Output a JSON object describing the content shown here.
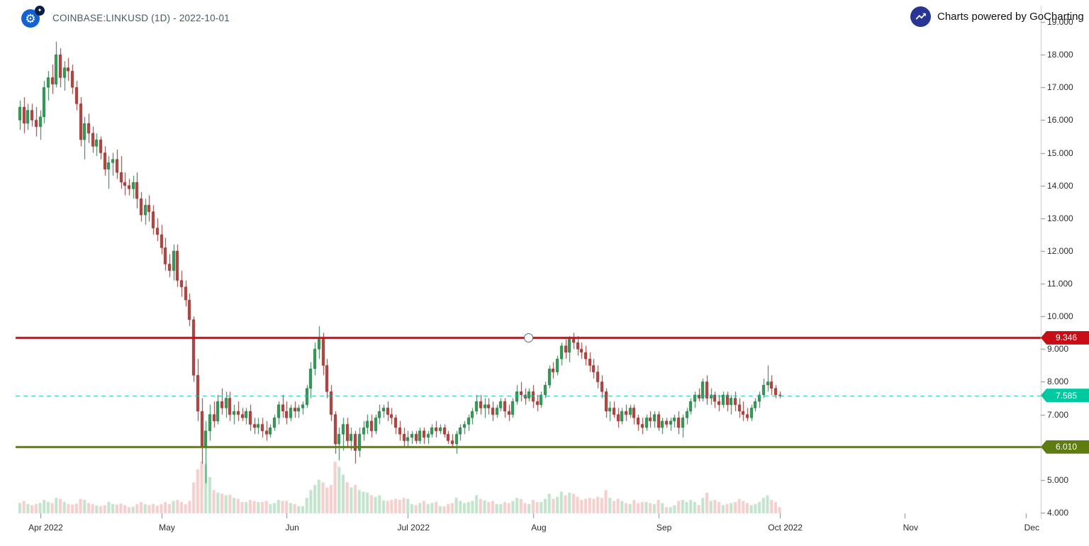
{
  "header": {
    "title": "COINBASE:LINKUSD (1D) - 2022-10-01",
    "powered_by": "Charts powered by GoCharting"
  },
  "colors": {
    "background": "#ffffff",
    "up_body": "#35a05a",
    "up_border": "#1d7a3f",
    "down_body": "#bf4540",
    "down_border": "#8c2f2b",
    "volume_up": "rgba(76,175,112,0.35)",
    "volume_down": "rgba(214,80,74,0.28)",
    "axis_line": "#c9c9c9",
    "tick": "#888888",
    "axis_text": "#2b2b2b"
  },
  "chart_data": {
    "type": "candlestick",
    "symbol": "COINBASE:LINKUSD",
    "interval": "1D",
    "as_of": "2022-10-01",
    "start_date": "2022-03-27",
    "y_axis": {
      "min": 4,
      "max": 19,
      "step": 1,
      "tick_labels": [
        "19.000",
        "18.000",
        "17.000",
        "16.000",
        "15.000",
        "14.000",
        "13.000",
        "12.000",
        "11.000",
        "10.000",
        "9.000",
        "8.000",
        "7.000",
        "6.000",
        "5.000",
        "4.000"
      ]
    },
    "x_axis_labels": [
      {
        "label": "Apr 2022",
        "day_index": 5
      },
      {
        "label": "May",
        "day_index": 35
      },
      {
        "label": "Jun",
        "day_index": 66
      },
      {
        "label": "Jul 2022",
        "day_index": 96
      },
      {
        "label": "Aug",
        "day_index": 127
      },
      {
        "label": "Sep",
        "day_index": 158
      },
      {
        "label": "Oct 2022",
        "day_index": 188
      },
      {
        "label": "Nov",
        "day_index": 219
      },
      {
        "label": "Dec",
        "day_index": 249
      }
    ],
    "horizontal_lines": [
      {
        "name": "resistance",
        "price": 9.346,
        "label": "9.346",
        "color": "#c90d17",
        "style": "solid",
        "width": 3,
        "handle": true
      },
      {
        "name": "last-price",
        "price": 7.585,
        "label": "7.585",
        "color": "#00c9a2",
        "style": "dashed",
        "width": 1,
        "handle": false
      },
      {
        "name": "support",
        "price": 6.01,
        "label": "6.010",
        "color": "#5f7c10",
        "style": "solid",
        "width": 3,
        "handle": false
      }
    ],
    "candles_format": [
      "open",
      "high",
      "low",
      "close",
      "relative_volume"
    ],
    "candles": [
      [
        16.0,
        16.6,
        15.7,
        16.4,
        20
      ],
      [
        16.4,
        16.7,
        15.6,
        15.9,
        24
      ],
      [
        15.9,
        16.5,
        15.7,
        16.3,
        18
      ],
      [
        16.3,
        16.5,
        15.8,
        16.0,
        16
      ],
      [
        16.0,
        16.4,
        15.5,
        15.8,
        18
      ],
      [
        15.8,
        16.3,
        15.4,
        16.1,
        20
      ],
      [
        16.1,
        17.2,
        15.9,
        17.0,
        26
      ],
      [
        17.0,
        17.5,
        16.6,
        17.3,
        22
      ],
      [
        17.3,
        17.7,
        16.8,
        17.1,
        20
      ],
      [
        17.1,
        18.4,
        17.0,
        18.0,
        30
      ],
      [
        18.0,
        18.2,
        17.0,
        17.3,
        28
      ],
      [
        17.3,
        17.8,
        16.9,
        17.6,
        22
      ],
      [
        17.6,
        17.9,
        17.2,
        17.5,
        18
      ],
      [
        17.5,
        17.7,
        16.8,
        17.0,
        17
      ],
      [
        17.0,
        17.2,
        16.3,
        16.5,
        19
      ],
      [
        16.5,
        16.7,
        15.2,
        15.4,
        28
      ],
      [
        15.4,
        16.1,
        14.8,
        15.9,
        26
      ],
      [
        15.9,
        16.2,
        15.3,
        15.6,
        20
      ],
      [
        15.6,
        15.8,
        15.0,
        15.2,
        18
      ],
      [
        15.2,
        15.6,
        14.9,
        15.4,
        15
      ],
      [
        15.4,
        15.5,
        14.8,
        15.0,
        14
      ],
      [
        15.0,
        15.2,
        14.3,
        14.5,
        16
      ],
      [
        14.5,
        14.9,
        13.9,
        14.7,
        22
      ],
      [
        14.7,
        15.0,
        14.3,
        14.8,
        18
      ],
      [
        14.8,
        15.1,
        14.2,
        14.4,
        17
      ],
      [
        14.4,
        14.9,
        13.9,
        14.1,
        19
      ],
      [
        14.1,
        14.4,
        13.7,
        14.0,
        16
      ],
      [
        14.0,
        14.2,
        13.7,
        13.9,
        12
      ],
      [
        13.9,
        14.3,
        13.6,
        14.1,
        13
      ],
      [
        14.1,
        14.4,
        13.3,
        13.6,
        18
      ],
      [
        13.6,
        13.8,
        12.9,
        13.1,
        22
      ],
      [
        13.1,
        13.6,
        12.8,
        13.4,
        18
      ],
      [
        13.4,
        13.7,
        12.9,
        13.2,
        16
      ],
      [
        13.2,
        13.4,
        12.5,
        12.7,
        18
      ],
      [
        12.7,
        13.0,
        12.3,
        12.5,
        15
      ],
      [
        12.5,
        12.8,
        11.9,
        12.1,
        18
      ],
      [
        12.1,
        12.4,
        11.4,
        11.6,
        22
      ],
      [
        11.6,
        11.9,
        11.2,
        11.4,
        18
      ],
      [
        11.4,
        12.2,
        11.1,
        12.0,
        24
      ],
      [
        12.0,
        12.2,
        10.9,
        11.1,
        26
      ],
      [
        11.1,
        11.4,
        10.6,
        10.9,
        22
      ],
      [
        10.9,
        11.1,
        10.3,
        10.5,
        18
      ],
      [
        10.5,
        10.7,
        9.7,
        9.9,
        24
      ],
      [
        9.9,
        10.0,
        8.0,
        8.2,
        60
      ],
      [
        8.2,
        8.7,
        6.8,
        7.1,
        85
      ],
      [
        7.1,
        7.5,
        5.5,
        6.0,
        100
      ],
      [
        6.0,
        6.8,
        4.9,
        6.5,
        95
      ],
      [
        6.5,
        7.3,
        6.2,
        7.0,
        70
      ],
      [
        7.0,
        7.4,
        6.6,
        6.8,
        45
      ],
      [
        6.8,
        7.6,
        6.7,
        7.4,
        40
      ],
      [
        7.4,
        7.8,
        7.0,
        7.2,
        38
      ],
      [
        7.2,
        7.7,
        6.9,
        7.5,
        35
      ],
      [
        7.5,
        7.7,
        6.8,
        7.0,
        36
      ],
      [
        7.0,
        7.3,
        6.7,
        7.1,
        30
      ],
      [
        7.1,
        7.4,
        6.8,
        7.0,
        28
      ],
      [
        7.0,
        7.2,
        6.8,
        6.9,
        22
      ],
      [
        6.9,
        7.2,
        6.7,
        7.1,
        22
      ],
      [
        7.1,
        7.3,
        6.5,
        6.7,
        26
      ],
      [
        6.7,
        6.9,
        6.4,
        6.6,
        24
      ],
      [
        6.6,
        6.9,
        6.4,
        6.7,
        22
      ],
      [
        6.7,
        6.9,
        6.3,
        6.5,
        22
      ],
      [
        6.5,
        6.8,
        6.2,
        6.4,
        24
      ],
      [
        6.4,
        6.7,
        6.3,
        6.6,
        18
      ],
      [
        6.6,
        7.0,
        6.5,
        6.9,
        20
      ],
      [
        6.9,
        7.4,
        6.7,
        7.3,
        26
      ],
      [
        7.3,
        7.6,
        6.9,
        7.1,
        24
      ],
      [
        7.1,
        7.4,
        6.7,
        6.9,
        24
      ],
      [
        6.9,
        7.3,
        6.8,
        7.2,
        20
      ],
      [
        7.2,
        7.4,
        6.9,
        7.1,
        18
      ],
      [
        7.1,
        7.3,
        6.9,
        7.2,
        14
      ],
      [
        7.2,
        7.4,
        7.0,
        7.3,
        14
      ],
      [
        7.3,
        7.9,
        7.2,
        7.8,
        30
      ],
      [
        7.8,
        8.6,
        7.5,
        8.4,
        45
      ],
      [
        8.4,
        9.2,
        8.2,
        9.0,
        55
      ],
      [
        9.0,
        9.7,
        8.7,
        9.3,
        65
      ],
      [
        9.3,
        9.5,
        8.2,
        8.5,
        60
      ],
      [
        8.5,
        8.7,
        7.5,
        7.7,
        50
      ],
      [
        7.7,
        7.9,
        6.8,
        7.0,
        55
      ],
      [
        7.0,
        7.1,
        5.8,
        6.1,
        100
      ],
      [
        6.1,
        6.6,
        5.6,
        6.4,
        90
      ],
      [
        6.4,
        6.9,
        5.9,
        6.7,
        75
      ],
      [
        6.7,
        6.9,
        6.0,
        6.2,
        60
      ],
      [
        6.2,
        6.6,
        5.9,
        6.4,
        50
      ],
      [
        6.4,
        6.5,
        5.5,
        5.9,
        55
      ],
      [
        5.9,
        6.6,
        5.7,
        6.4,
        45
      ],
      [
        6.4,
        6.8,
        6.2,
        6.6,
        42
      ],
      [
        6.6,
        7.0,
        6.4,
        6.8,
        40
      ],
      [
        6.8,
        7.0,
        6.3,
        6.5,
        35
      ],
      [
        6.5,
        7.0,
        6.4,
        6.9,
        32
      ],
      [
        6.9,
        7.3,
        6.7,
        7.1,
        35
      ],
      [
        7.1,
        7.3,
        6.9,
        7.2,
        25
      ],
      [
        7.2,
        7.4,
        6.8,
        7.0,
        24
      ],
      [
        7.0,
        7.2,
        6.7,
        6.9,
        26
      ],
      [
        6.9,
        7.0,
        6.4,
        6.6,
        28
      ],
      [
        6.6,
        6.8,
        6.2,
        6.4,
        26
      ],
      [
        6.4,
        6.6,
        6.0,
        6.2,
        30
      ],
      [
        6.2,
        6.5,
        6.0,
        6.3,
        28
      ],
      [
        6.3,
        6.5,
        6.1,
        6.4,
        18
      ],
      [
        6.4,
        6.5,
        6.1,
        6.2,
        16
      ],
      [
        6.2,
        6.6,
        6.1,
        6.5,
        20
      ],
      [
        6.5,
        6.6,
        6.1,
        6.3,
        24
      ],
      [
        6.3,
        6.5,
        6.1,
        6.4,
        18
      ],
      [
        6.4,
        6.7,
        6.3,
        6.6,
        20
      ],
      [
        6.6,
        6.8,
        6.3,
        6.5,
        22
      ],
      [
        6.5,
        6.7,
        6.4,
        6.6,
        14
      ],
      [
        6.6,
        6.7,
        6.3,
        6.4,
        14
      ],
      [
        6.4,
        6.5,
        6.1,
        6.2,
        18
      ],
      [
        6.2,
        6.4,
        6.0,
        6.1,
        20
      ],
      [
        6.1,
        6.5,
        5.8,
        6.4,
        30
      ],
      [
        6.4,
        6.7,
        6.2,
        6.6,
        24
      ],
      [
        6.6,
        6.8,
        6.4,
        6.7,
        20
      ],
      [
        6.7,
        7.0,
        6.5,
        6.9,
        22
      ],
      [
        6.9,
        7.2,
        6.7,
        7.1,
        24
      ],
      [
        7.1,
        7.6,
        7.0,
        7.4,
        35
      ],
      [
        7.4,
        7.6,
        7.0,
        7.2,
        28
      ],
      [
        7.2,
        7.5,
        6.9,
        7.3,
        25
      ],
      [
        7.3,
        7.5,
        7.0,
        7.2,
        22
      ],
      [
        7.2,
        7.4,
        6.8,
        7.0,
        24
      ],
      [
        7.0,
        7.3,
        6.9,
        7.2,
        18
      ],
      [
        7.2,
        7.5,
        7.1,
        7.4,
        18
      ],
      [
        7.4,
        7.5,
        6.9,
        7.1,
        22
      ],
      [
        7.1,
        7.3,
        6.8,
        7.0,
        20
      ],
      [
        7.0,
        7.5,
        6.9,
        7.4,
        24
      ],
      [
        7.4,
        7.9,
        7.3,
        7.7,
        30
      ],
      [
        7.7,
        8.0,
        7.4,
        7.6,
        28
      ],
      [
        7.6,
        7.8,
        7.3,
        7.5,
        20
      ],
      [
        7.5,
        7.8,
        7.4,
        7.7,
        18
      ],
      [
        7.7,
        7.9,
        7.2,
        7.4,
        26
      ],
      [
        7.4,
        7.6,
        7.1,
        7.3,
        22
      ],
      [
        7.3,
        7.7,
        7.2,
        7.6,
        22
      ],
      [
        7.6,
        8.0,
        7.5,
        7.9,
        28
      ],
      [
        7.9,
        8.5,
        7.8,
        8.4,
        38
      ],
      [
        8.4,
        8.6,
        8.1,
        8.3,
        28
      ],
      [
        8.3,
        8.8,
        8.2,
        8.7,
        32
      ],
      [
        8.7,
        9.2,
        8.5,
        9.1,
        42
      ],
      [
        9.1,
        9.3,
        8.7,
        8.9,
        35
      ],
      [
        8.9,
        9.4,
        8.6,
        9.3,
        40
      ],
      [
        9.3,
        9.5,
        9.0,
        9.2,
        38
      ],
      [
        9.2,
        9.4,
        8.8,
        9.0,
        32
      ],
      [
        9.0,
        9.2,
        8.7,
        8.9,
        26
      ],
      [
        8.9,
        9.1,
        8.5,
        8.7,
        28
      ],
      [
        8.7,
        8.9,
        8.3,
        8.5,
        30
      ],
      [
        8.5,
        8.7,
        8.1,
        8.3,
        28
      ],
      [
        8.3,
        8.5,
        7.8,
        8.0,
        32
      ],
      [
        8.0,
        8.2,
        7.5,
        7.7,
        30
      ],
      [
        7.7,
        7.8,
        6.9,
        7.1,
        45
      ],
      [
        7.1,
        7.4,
        6.8,
        7.2,
        30
      ],
      [
        7.2,
        7.4,
        6.9,
        7.0,
        24
      ],
      [
        7.0,
        7.2,
        6.6,
        6.8,
        28
      ],
      [
        6.8,
        7.2,
        6.7,
        7.1,
        24
      ],
      [
        7.1,
        7.3,
        6.8,
        7.0,
        20
      ],
      [
        7.0,
        7.3,
        6.9,
        7.2,
        18
      ],
      [
        7.2,
        7.3,
        6.7,
        6.9,
        26
      ],
      [
        6.9,
        7.0,
        6.5,
        6.7,
        20
      ],
      [
        6.7,
        6.9,
        6.4,
        6.6,
        22
      ],
      [
        6.6,
        7.0,
        6.5,
        6.9,
        22
      ],
      [
        6.9,
        7.1,
        6.6,
        6.8,
        20
      ],
      [
        6.8,
        7.1,
        6.6,
        7.0,
        18
      ],
      [
        7.0,
        7.1,
        6.5,
        6.6,
        26
      ],
      [
        6.6,
        6.9,
        6.4,
        6.8,
        20
      ],
      [
        6.8,
        6.9,
        6.6,
        6.7,
        12
      ],
      [
        6.7,
        6.9,
        6.5,
        6.8,
        12
      ],
      [
        6.8,
        7.0,
        6.6,
        6.9,
        16
      ],
      [
        6.9,
        7.1,
        6.4,
        6.6,
        24
      ],
      [
        6.6,
        7.0,
        6.3,
        6.9,
        26
      ],
      [
        6.9,
        7.2,
        6.7,
        7.1,
        22
      ],
      [
        7.1,
        7.5,
        7.0,
        7.4,
        26
      ],
      [
        7.4,
        7.7,
        7.2,
        7.6,
        22
      ],
      [
        7.6,
        7.8,
        7.4,
        7.5,
        16
      ],
      [
        7.5,
        8.1,
        7.4,
        8.0,
        30
      ],
      [
        8.0,
        8.2,
        7.3,
        7.5,
        40
      ],
      [
        7.5,
        7.8,
        7.3,
        7.6,
        24
      ],
      [
        7.6,
        7.7,
        7.2,
        7.4,
        26
      ],
      [
        7.4,
        7.6,
        7.1,
        7.3,
        22
      ],
      [
        7.3,
        7.7,
        7.2,
        7.6,
        16
      ],
      [
        7.6,
        7.7,
        7.1,
        7.3,
        18
      ],
      [
        7.3,
        7.6,
        7.0,
        7.5,
        20
      ],
      [
        7.5,
        7.7,
        7.1,
        7.3,
        22
      ],
      [
        7.3,
        7.5,
        6.9,
        7.1,
        28
      ],
      [
        7.1,
        7.4,
        6.8,
        7.0,
        24
      ],
      [
        7.0,
        7.2,
        6.8,
        6.9,
        20
      ],
      [
        6.9,
        7.3,
        6.8,
        7.2,
        16
      ],
      [
        7.2,
        7.5,
        7.1,
        7.4,
        18
      ],
      [
        7.4,
        7.7,
        7.2,
        7.6,
        22
      ],
      [
        7.6,
        8.1,
        7.5,
        7.9,
        30
      ],
      [
        7.9,
        8.5,
        7.7,
        8.0,
        35
      ],
      [
        8.0,
        8.2,
        7.6,
        7.8,
        26
      ],
      [
        7.8,
        7.9,
        7.5,
        7.6,
        22
      ],
      [
        7.6,
        7.7,
        7.5,
        7.585,
        12
      ]
    ]
  }
}
